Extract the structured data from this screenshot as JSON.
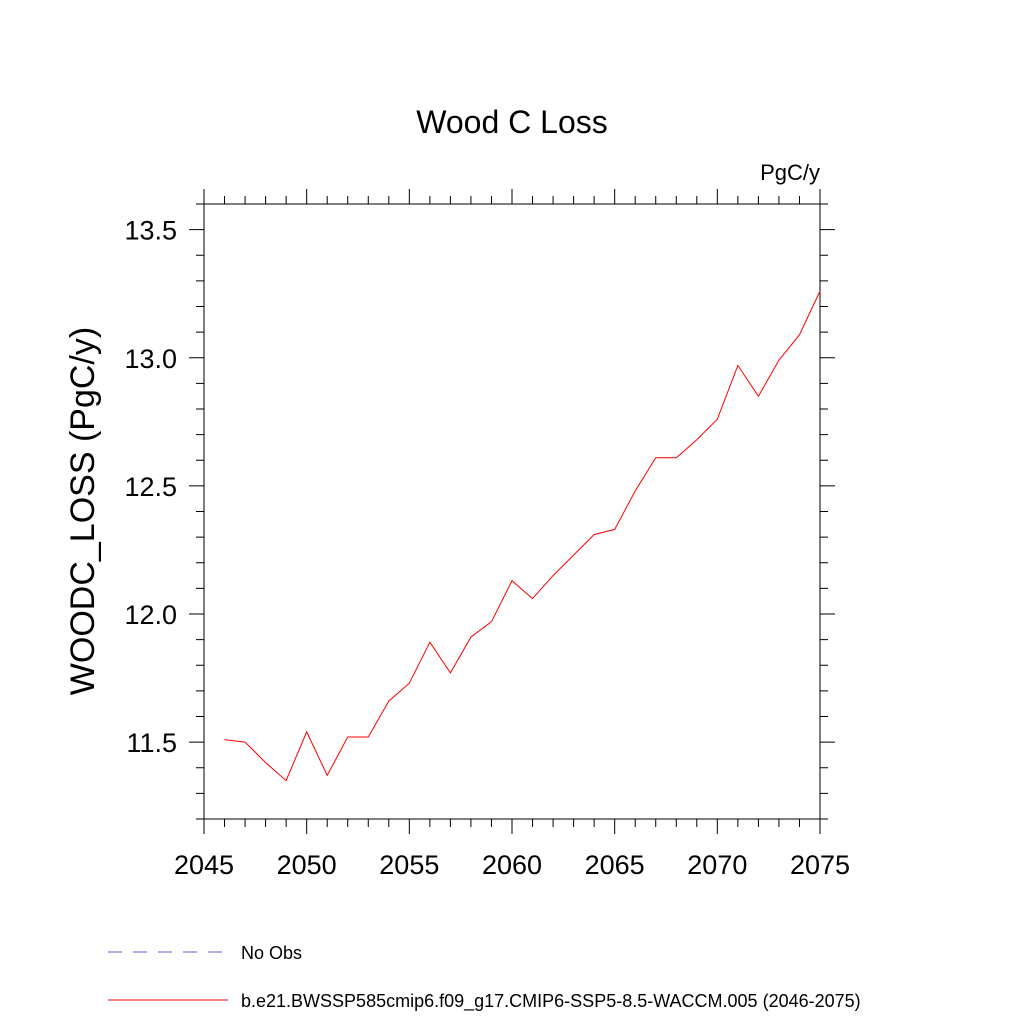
{
  "chart_data": {
    "type": "line",
    "title": "Wood C Loss",
    "units_label": "PgC/y",
    "ylabel": "WOODC_LOSS  (PgC/y)",
    "xlabel": "",
    "xlim": [
      2045,
      2075
    ],
    "ylim": [
      11.2,
      13.6
    ],
    "x_major_ticks": [
      2045,
      2050,
      2055,
      2060,
      2065,
      2070,
      2075
    ],
    "x_minor_step": 1,
    "y_major_ticks": [
      11.5,
      12.0,
      12.5,
      13.0,
      13.5
    ],
    "y_major_tick_labels": [
      "11.5",
      "12.0",
      "12.5",
      "13.0",
      "13.5"
    ],
    "y_minor_step": 0.1,
    "grid": false,
    "x": [
      2046,
      2047,
      2048,
      2049,
      2050,
      2051,
      2052,
      2053,
      2054,
      2055,
      2056,
      2057,
      2058,
      2059,
      2060,
      2061,
      2062,
      2063,
      2064,
      2065,
      2066,
      2067,
      2068,
      2069,
      2070,
      2071,
      2072,
      2073,
      2074,
      2075
    ],
    "series": [
      {
        "name": "b.e21.BWSSP585cmip6.f09_g17.CMIP6-SSP5-8.5-WACCM.005 (2046-2075)",
        "color": "#ff0000",
        "dash": "solid",
        "values": [
          11.51,
          11.5,
          11.42,
          11.35,
          11.54,
          11.37,
          11.52,
          11.52,
          11.66,
          11.73,
          11.89,
          11.77,
          11.91,
          11.97,
          12.13,
          12.06,
          12.15,
          12.23,
          12.31,
          12.33,
          12.48,
          12.61,
          12.61,
          12.68,
          12.76,
          12.97,
          12.85,
          12.99,
          13.09,
          13.26
        ]
      }
    ],
    "legend": {
      "placement": "bottom",
      "entries": [
        {
          "label": "No Obs",
          "color": "#6a5acd",
          "dash": "dashed"
        },
        {
          "label": "b.e21.BWSSP585cmip6.f09_g17.CMIP6-SSP5-8.5-WACCM.005 (2046-2075)",
          "color": "#ff0000",
          "dash": "solid"
        }
      ]
    }
  }
}
